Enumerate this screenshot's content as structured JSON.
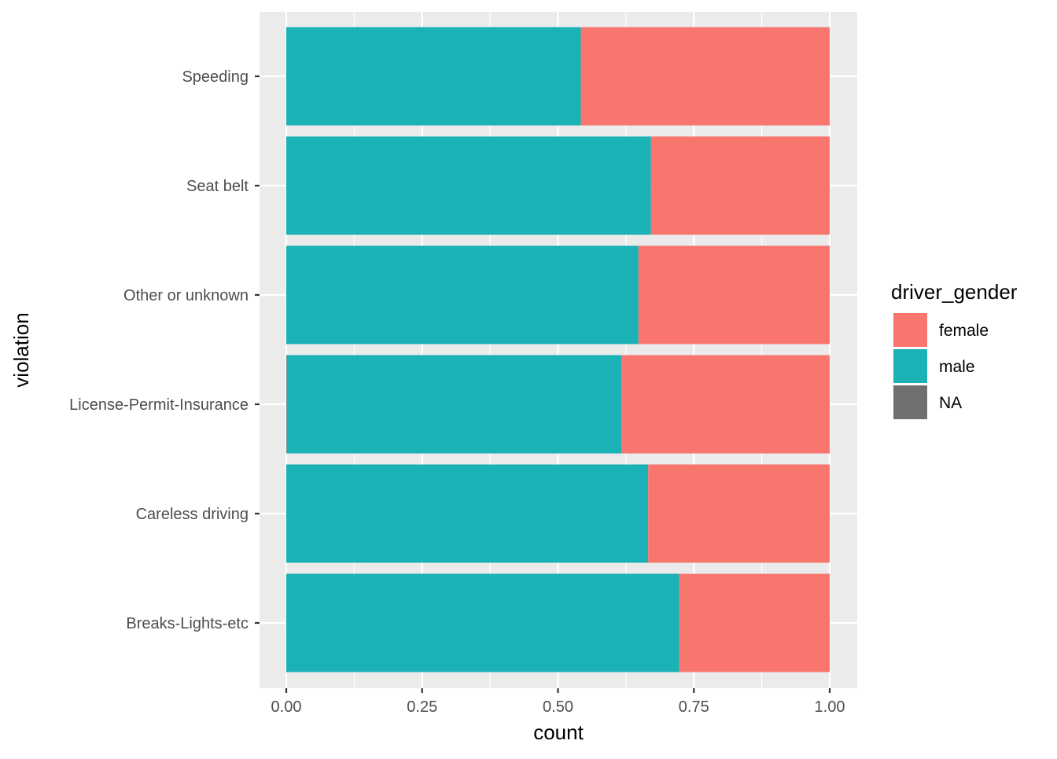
{
  "chart_data": {
    "type": "bar",
    "orientation": "horizontal",
    "stacking": "fill",
    "xlabel": "count",
    "ylabel": "violation",
    "xlim": [
      0,
      1
    ],
    "x_ticks": [
      "0.00",
      "0.25",
      "0.50",
      "0.75",
      "1.00"
    ],
    "x_tick_values": [
      0,
      0.25,
      0.5,
      0.75,
      1.0
    ],
    "grid": true,
    "legend_position": "right",
    "categories": [
      "Speeding",
      "Seat belt",
      "Other or unknown",
      "License-Permit-Insurance",
      "Careless driving",
      "Breaks-Lights-etc"
    ],
    "series": [
      {
        "name": "female",
        "color": "#F8766D",
        "values": [
          0.458,
          0.329,
          0.352,
          0.383,
          0.334,
          0.277
        ]
      },
      {
        "name": "male",
        "color": "#1AB2B5",
        "values": [
          0.542,
          0.671,
          0.648,
          0.616,
          0.666,
          0.723
        ]
      },
      {
        "name": "NA",
        "color": "#707070",
        "values": [
          0.0,
          0.0,
          0.0,
          0.001,
          0.0,
          0.0
        ]
      }
    ],
    "legend": {
      "title": "driver_gender",
      "entries": [
        "female",
        "male",
        "NA"
      ]
    },
    "colors": {
      "panel_background": "#EBEBEB",
      "grid_line": "#FFFFFF",
      "tick_mark": "#333333",
      "female": "#F8766D",
      "male": "#1AB2B5",
      "na": "#707070"
    }
  }
}
